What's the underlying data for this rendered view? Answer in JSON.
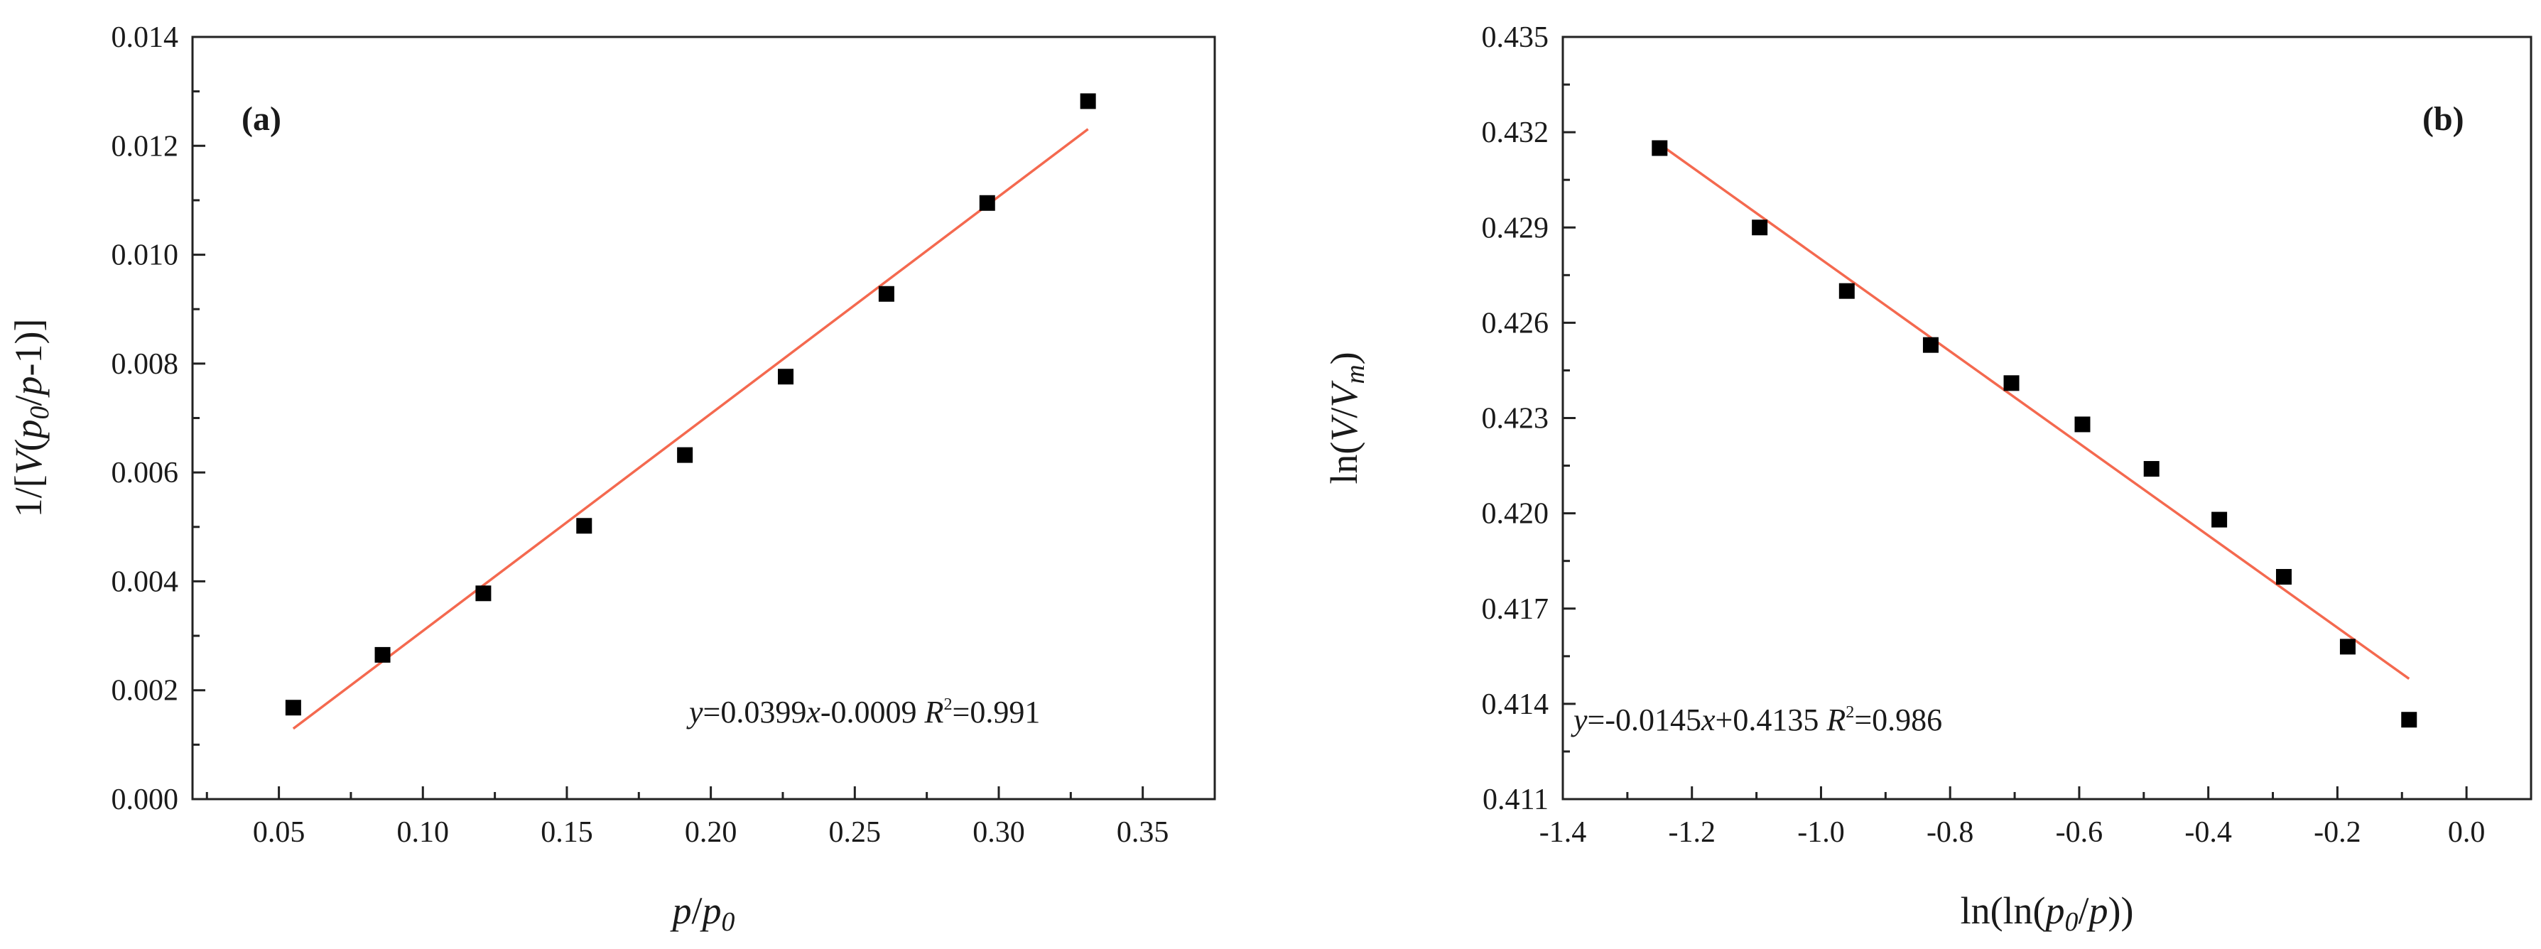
{
  "chart_data": [
    {
      "type": "scatter",
      "panel_label": "(a)",
      "xlabel": {
        "parts": [
          {
            "t": "p",
            "italic": true
          },
          {
            "t": "/"
          },
          {
            "t": "p",
            "italic": true
          },
          {
            "t": "0",
            "italic": true,
            "sub": true
          }
        ]
      },
      "ylabel": {
        "parts": [
          {
            "t": "1/["
          },
          {
            "t": "V",
            "italic": true
          },
          {
            "t": "("
          },
          {
            "t": "p",
            "italic": true
          },
          {
            "t": "0",
            "italic": true,
            "sub": true
          },
          {
            "t": "/"
          },
          {
            "t": "p",
            "italic": true
          },
          {
            "t": "-1)]"
          }
        ]
      },
      "xlim": [
        0.02,
        0.375
      ],
      "ylim": [
        0.0,
        0.014
      ],
      "xticks": [
        0.05,
        0.1,
        0.15,
        0.2,
        0.25,
        0.3,
        0.35
      ],
      "xtick_labels": [
        "0.05",
        "0.10",
        "0.15",
        "0.20",
        "0.25",
        "0.30",
        "0.35"
      ],
      "yticks": [
        0.0,
        0.002,
        0.004,
        0.006,
        0.008,
        0.01,
        0.012,
        0.014
      ],
      "ytick_labels": [
        "0.000",
        "0.002",
        "0.004",
        "0.006",
        "0.008",
        "0.010",
        "0.012",
        "0.014"
      ],
      "series": [
        {
          "name": "data",
          "marker": "square",
          "color": "#000000",
          "x": [
            0.055,
            0.086,
            0.121,
            0.156,
            0.191,
            0.226,
            0.261,
            0.296,
            0.331
          ],
          "y": [
            0.00168,
            0.00265,
            0.00378,
            0.00502,
            0.00632,
            0.00776,
            0.00928,
            0.01095,
            0.01282
          ]
        }
      ],
      "fit": {
        "slope": 0.0399,
        "intercept": -0.0009,
        "x_range": [
          0.055,
          0.331
        ],
        "color": "#f4694f"
      },
      "equation": {
        "parts": [
          {
            "t": "y",
            "italic": true
          },
          {
            "t": "=0.0399"
          },
          {
            "t": "x",
            "italic": true
          },
          {
            "t": "-0.0009  "
          },
          {
            "t": "R",
            "italic": true
          },
          {
            "t": "2",
            "sup": true
          },
          {
            "t": "=0.991"
          }
        ]
      }
    },
    {
      "type": "scatter",
      "panel_label": "(b)",
      "xlabel": {
        "parts": [
          {
            "t": "ln(ln("
          },
          {
            "t": "p",
            "italic": true
          },
          {
            "t": "0",
            "italic": true,
            "sub": true
          },
          {
            "t": "/"
          },
          {
            "t": "p",
            "italic": true
          },
          {
            "t": "))"
          }
        ]
      },
      "ylabel": {
        "parts": [
          {
            "t": "ln("
          },
          {
            "t": "V",
            "italic": true
          },
          {
            "t": "/"
          },
          {
            "t": "V",
            "italic": true
          },
          {
            "t": "m",
            "italic": true,
            "sub": true
          },
          {
            "t": ")"
          }
        ]
      },
      "xlim": [
        -1.4,
        0.1
      ],
      "ylim": [
        0.411,
        0.435
      ],
      "xticks": [
        -1.4,
        -1.2,
        -1.0,
        -0.8,
        -0.6,
        -0.4,
        -0.2,
        0.0
      ],
      "xtick_labels": [
        "-1.4",
        "-1.2",
        "-1.0",
        "-0.8",
        "-0.6",
        "-0.4",
        "-0.2",
        "0.0"
      ],
      "yticks": [
        0.411,
        0.414,
        0.417,
        0.42,
        0.423,
        0.426,
        0.429,
        0.432,
        0.435
      ],
      "ytick_labels": [
        "0.411",
        "0.414",
        "0.417",
        "0.420",
        "0.423",
        "0.426",
        "0.429",
        "0.432",
        "0.435"
      ],
      "series": [
        {
          "name": "data",
          "marker": "square",
          "color": "#000000",
          "x": [
            -1.25,
            -1.095,
            -0.96,
            -0.83,
            -0.705,
            -0.595,
            -0.488,
            -0.383,
            -0.283,
            -0.184,
            -0.089
          ],
          "y": [
            0.4315,
            0.429,
            0.427,
            0.4253,
            0.4241,
            0.4228,
            0.4214,
            0.4198,
            0.418,
            0.4158,
            0.4135
          ]
        }
      ],
      "fit": {
        "slope": -0.0145,
        "intercept": 0.4135,
        "x_range": [
          -1.25,
          -0.089
        ],
        "color": "#f4694f"
      },
      "equation": {
        "parts": [
          {
            "t": "y",
            "italic": true
          },
          {
            "t": "=-0.0145"
          },
          {
            "t": "x",
            "italic": true
          },
          {
            "t": "+0.4135  "
          },
          {
            "t": "R",
            "italic": true
          },
          {
            "t": "2",
            "sup": true
          },
          {
            "t": "=0.986"
          }
        ]
      }
    }
  ]
}
